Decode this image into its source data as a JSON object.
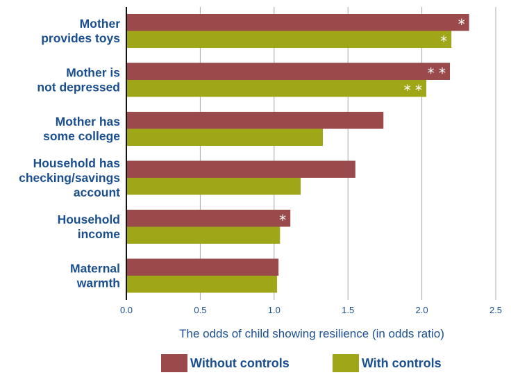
{
  "chart_data": {
    "type": "bar",
    "orientation": "horizontal",
    "categories": [
      [
        "Mother",
        "provides toys"
      ],
      [
        "Mother is",
        "not depressed"
      ],
      [
        "Mother has",
        "some college"
      ],
      [
        "Household has",
        "checking/savings",
        "account"
      ],
      [
        "Household",
        "income"
      ],
      [
        "Maternal",
        "warmth"
      ]
    ],
    "series": [
      {
        "name": "Without controls",
        "color": "#9b4a4c",
        "values": [
          2.32,
          2.19,
          1.74,
          1.55,
          1.11,
          1.03
        ],
        "significance": [
          "*",
          "**",
          "",
          "",
          "*",
          ""
        ]
      },
      {
        "name": "With controls",
        "color": "#9fa617",
        "values": [
          2.2,
          2.03,
          1.33,
          1.18,
          1.04,
          1.02
        ],
        "significance": [
          "*",
          "**",
          "",
          "",
          "",
          ""
        ]
      }
    ],
    "xlabel": "The odds of child showing resilience (in odds ratio)",
    "xlim": [
      0,
      2.5
    ],
    "xticks": [
      "0.0",
      "0.5",
      "1.0",
      "1.5",
      "2.0",
      "2.5"
    ],
    "grid": "vertical",
    "legend_position": "bottom"
  }
}
